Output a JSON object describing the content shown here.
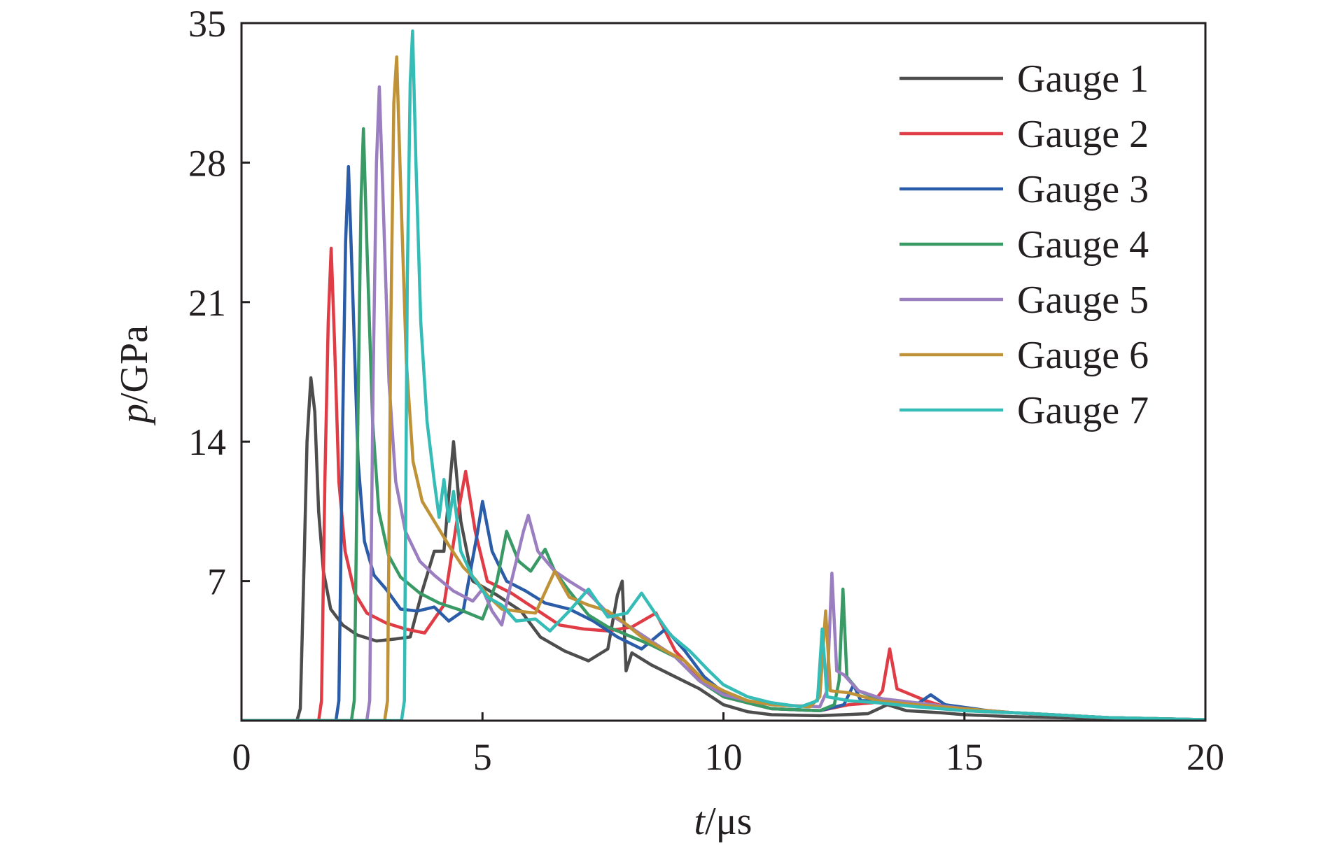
{
  "chart_data": {
    "type": "line",
    "xlabel": {
      "italic": "t",
      "unit": "/μs"
    },
    "ylabel": {
      "italic": "p",
      "unit": "/GPa"
    },
    "xlim": [
      0,
      20
    ],
    "ylim": [
      0,
      35
    ],
    "xticks": [
      0,
      5,
      10,
      15,
      20
    ],
    "yticks": [
      7,
      14,
      21,
      28,
      35
    ],
    "grid": false,
    "legend_position": "top-right",
    "series": [
      {
        "name": "Gauge 1",
        "color": "#4d4d4d",
        "points": [
          [
            0,
            0
          ],
          [
            1.15,
            0
          ],
          [
            1.22,
            0.6
          ],
          [
            1.3,
            8
          ],
          [
            1.36,
            14
          ],
          [
            1.44,
            17.2
          ],
          [
            1.52,
            15.5
          ],
          [
            1.6,
            10.5
          ],
          [
            1.7,
            7.5
          ],
          [
            1.85,
            5.6
          ],
          [
            2.1,
            4.8
          ],
          [
            2.4,
            4.3
          ],
          [
            2.8,
            4.0
          ],
          [
            3.2,
            4.1
          ],
          [
            3.5,
            4.2
          ],
          [
            3.75,
            6.5
          ],
          [
            4.0,
            8.5
          ],
          [
            4.2,
            8.5
          ],
          [
            4.4,
            14.0
          ],
          [
            4.55,
            10
          ],
          [
            4.8,
            7
          ],
          [
            5.3,
            6.3
          ],
          [
            5.8,
            5.5
          ],
          [
            6.2,
            4.2
          ],
          [
            6.7,
            3.5
          ],
          [
            7.2,
            3.0
          ],
          [
            7.6,
            3.6
          ],
          [
            7.8,
            6.3
          ],
          [
            7.9,
            7.0
          ],
          [
            7.98,
            2.5
          ],
          [
            8.1,
            3.4
          ],
          [
            8.5,
            2.8
          ],
          [
            9.0,
            2.2
          ],
          [
            9.5,
            1.6
          ],
          [
            10.0,
            0.8
          ],
          [
            10.5,
            0.45
          ],
          [
            11.0,
            0.3
          ],
          [
            12.0,
            0.25
          ],
          [
            12.5,
            0.3
          ],
          [
            13.0,
            0.35
          ],
          [
            13.4,
            0.8
          ],
          [
            13.8,
            0.5
          ],
          [
            14.5,
            0.4
          ],
          [
            15,
            0.3
          ],
          [
            16,
            0.2
          ],
          [
            18,
            0.1
          ],
          [
            20,
            0.05
          ]
        ]
      },
      {
        "name": "Gauge 2",
        "color": "#e03c45",
        "points": [
          [
            0,
            0
          ],
          [
            1.6,
            0
          ],
          [
            1.66,
            1
          ],
          [
            1.73,
            12
          ],
          [
            1.8,
            20
          ],
          [
            1.86,
            23.7
          ],
          [
            1.93,
            19
          ],
          [
            2.02,
            12
          ],
          [
            2.15,
            8.5
          ],
          [
            2.35,
            6.4
          ],
          [
            2.6,
            5.4
          ],
          [
            3.0,
            4.9
          ],
          [
            3.4,
            4.6
          ],
          [
            3.8,
            4.4
          ],
          [
            4.2,
            5.8
          ],
          [
            4.5,
            10.5
          ],
          [
            4.65,
            12.5
          ],
          [
            4.85,
            9.5
          ],
          [
            5.1,
            7.0
          ],
          [
            5.6,
            6.4
          ],
          [
            6.1,
            5.6
          ],
          [
            6.6,
            4.8
          ],
          [
            7.1,
            4.6
          ],
          [
            7.6,
            4.5
          ],
          [
            8.1,
            4.7
          ],
          [
            8.6,
            5.4
          ],
          [
            9.0,
            3.5
          ],
          [
            9.5,
            2.2
          ],
          [
            10.0,
            1.2
          ],
          [
            10.5,
            0.9
          ],
          [
            11.0,
            0.6
          ],
          [
            12.0,
            0.5
          ],
          [
            12.6,
            0.8
          ],
          [
            13.1,
            0.9
          ],
          [
            13.3,
            1.5
          ],
          [
            13.45,
            3.6
          ],
          [
            13.6,
            1.6
          ],
          [
            14.2,
            1.0
          ],
          [
            14.6,
            0.7
          ],
          [
            15.2,
            0.5
          ],
          [
            16,
            0.4
          ],
          [
            18,
            0.15
          ],
          [
            20,
            0.05
          ]
        ]
      },
      {
        "name": "Gauge 3",
        "color": "#2a5ca8",
        "points": [
          [
            0,
            0
          ],
          [
            1.96,
            0
          ],
          [
            2.02,
            1
          ],
          [
            2.1,
            15
          ],
          [
            2.16,
            24
          ],
          [
            2.22,
            27.8
          ],
          [
            2.3,
            22
          ],
          [
            2.42,
            13
          ],
          [
            2.55,
            9.0
          ],
          [
            2.75,
            7.3
          ],
          [
            3.0,
            6.6
          ],
          [
            3.3,
            5.6
          ],
          [
            3.65,
            5.5
          ],
          [
            4.0,
            5.7
          ],
          [
            4.3,
            5.0
          ],
          [
            4.6,
            5.5
          ],
          [
            4.9,
            9.5
          ],
          [
            5.0,
            11.0
          ],
          [
            5.2,
            8.5
          ],
          [
            5.5,
            7.0
          ],
          [
            5.9,
            6.5
          ],
          [
            6.3,
            5.9
          ],
          [
            6.8,
            5.6
          ],
          [
            7.3,
            5.0
          ],
          [
            7.8,
            4.2
          ],
          [
            8.3,
            3.6
          ],
          [
            8.8,
            4.6
          ],
          [
            9.2,
            3.5
          ],
          [
            9.6,
            2.2
          ],
          [
            10.0,
            1.4
          ],
          [
            10.5,
            0.9
          ],
          [
            11.0,
            0.6
          ],
          [
            12.0,
            0.5
          ],
          [
            12.5,
            0.8
          ],
          [
            12.7,
            1.8
          ],
          [
            12.85,
            1.0
          ],
          [
            13.5,
            1.0
          ],
          [
            14.0,
            0.8
          ],
          [
            14.3,
            1.3
          ],
          [
            14.6,
            0.8
          ],
          [
            15.5,
            0.5
          ],
          [
            16,
            0.4
          ],
          [
            18,
            0.15
          ],
          [
            20,
            0.05
          ]
        ]
      },
      {
        "name": "Gauge 4",
        "color": "#3a9a66",
        "points": [
          [
            0,
            0
          ],
          [
            2.28,
            0
          ],
          [
            2.34,
            1
          ],
          [
            2.42,
            16
          ],
          [
            2.48,
            26
          ],
          [
            2.53,
            29.7
          ],
          [
            2.6,
            24
          ],
          [
            2.72,
            15
          ],
          [
            2.85,
            10.5
          ],
          [
            3.05,
            8.3
          ],
          [
            3.3,
            7.2
          ],
          [
            3.7,
            6.4
          ],
          [
            4.1,
            5.9
          ],
          [
            4.6,
            5.5
          ],
          [
            5.0,
            5.1
          ],
          [
            5.3,
            7.0
          ],
          [
            5.5,
            9.5
          ],
          [
            5.75,
            8.0
          ],
          [
            6.0,
            7.5
          ],
          [
            6.3,
            8.6
          ],
          [
            6.5,
            7.5
          ],
          [
            6.8,
            6.5
          ],
          [
            7.2,
            5.3
          ],
          [
            7.6,
            4.7
          ],
          [
            8.0,
            4.3
          ],
          [
            8.5,
            3.8
          ],
          [
            9.0,
            3.2
          ],
          [
            9.5,
            2.0
          ],
          [
            10.0,
            1.2
          ],
          [
            10.5,
            0.9
          ],
          [
            11.0,
            0.6
          ],
          [
            12.0,
            0.5
          ],
          [
            12.3,
            0.8
          ],
          [
            12.4,
            2.0
          ],
          [
            12.48,
            6.6
          ],
          [
            12.56,
            2.2
          ],
          [
            12.8,
            1.5
          ],
          [
            13.3,
            1.0
          ],
          [
            14.0,
            0.8
          ],
          [
            15,
            0.5
          ],
          [
            16,
            0.4
          ],
          [
            18,
            0.15
          ],
          [
            20,
            0.05
          ]
        ]
      },
      {
        "name": "Gauge 5",
        "color": "#9a7ec0",
        "points": [
          [
            0,
            0
          ],
          [
            2.6,
            0
          ],
          [
            2.66,
            1
          ],
          [
            2.73,
            17
          ],
          [
            2.8,
            28
          ],
          [
            2.86,
            31.8
          ],
          [
            2.94,
            26
          ],
          [
            3.06,
            17
          ],
          [
            3.2,
            12
          ],
          [
            3.4,
            9.5
          ],
          [
            3.7,
            8.0
          ],
          [
            4.0,
            7.3
          ],
          [
            4.4,
            6.5
          ],
          [
            4.8,
            6.0
          ],
          [
            5.0,
            6.6
          ],
          [
            5.2,
            5.5
          ],
          [
            5.4,
            4.8
          ],
          [
            5.6,
            7.0
          ],
          [
            5.85,
            9.5
          ],
          [
            5.95,
            10.3
          ],
          [
            6.15,
            8.5
          ],
          [
            6.5,
            7.5
          ],
          [
            6.8,
            7.0
          ],
          [
            7.2,
            6.4
          ],
          [
            7.6,
            5.4
          ],
          [
            8.0,
            4.8
          ],
          [
            8.5,
            4.0
          ],
          [
            9.0,
            3.2
          ],
          [
            9.5,
            2.0
          ],
          [
            10.0,
            1.3
          ],
          [
            10.5,
            1.0
          ],
          [
            11.0,
            0.8
          ],
          [
            12.0,
            0.7
          ],
          [
            12.15,
            1.5
          ],
          [
            12.25,
            7.4
          ],
          [
            12.35,
            2.5
          ],
          [
            12.5,
            2.3
          ],
          [
            12.8,
            1.5
          ],
          [
            13.3,
            1.1
          ],
          [
            14.0,
            0.9
          ],
          [
            15,
            0.6
          ],
          [
            16,
            0.4
          ],
          [
            18,
            0.15
          ],
          [
            20,
            0.05
          ]
        ]
      },
      {
        "name": "Gauge 6",
        "color": "#bf9238",
        "points": [
          [
            0,
            0
          ],
          [
            2.97,
            0
          ],
          [
            3.03,
            1
          ],
          [
            3.1,
            20
          ],
          [
            3.16,
            31
          ],
          [
            3.22,
            33.3
          ],
          [
            3.3,
            27
          ],
          [
            3.42,
            18
          ],
          [
            3.56,
            13
          ],
          [
            3.75,
            11.0
          ],
          [
            4.0,
            10.0
          ],
          [
            4.3,
            8.8
          ],
          [
            4.6,
            7.7
          ],
          [
            4.85,
            7.1
          ],
          [
            5.1,
            6.3
          ],
          [
            5.4,
            5.6
          ],
          [
            5.7,
            5.5
          ],
          [
            6.1,
            5.4
          ],
          [
            6.5,
            7.5
          ],
          [
            6.8,
            6.2
          ],
          [
            7.2,
            5.8
          ],
          [
            7.6,
            5.5
          ],
          [
            7.9,
            5.0
          ],
          [
            8.3,
            4.2
          ],
          [
            8.8,
            3.5
          ],
          [
            9.2,
            3.0
          ],
          [
            9.6,
            2.0
          ],
          [
            10.0,
            1.5
          ],
          [
            10.5,
            1.0
          ],
          [
            11.0,
            0.8
          ],
          [
            11.8,
            0.7
          ],
          [
            12.0,
            1.2
          ],
          [
            12.12,
            5.5
          ],
          [
            12.22,
            1.5
          ],
          [
            12.6,
            1.4
          ],
          [
            13.2,
            1.0
          ],
          [
            14.0,
            0.8
          ],
          [
            15,
            0.6
          ],
          [
            16,
            0.4
          ],
          [
            18,
            0.15
          ],
          [
            20,
            0.05
          ]
        ]
      },
      {
        "name": "Gauge 7",
        "color": "#35bcb6",
        "points": [
          [
            0,
            0
          ],
          [
            3.32,
            0
          ],
          [
            3.38,
            1
          ],
          [
            3.44,
            22
          ],
          [
            3.5,
            32
          ],
          [
            3.55,
            34.6
          ],
          [
            3.62,
            28
          ],
          [
            3.72,
            20
          ],
          [
            3.85,
            15
          ],
          [
            4.0,
            12.0
          ],
          [
            4.1,
            10.2
          ],
          [
            4.2,
            12.1
          ],
          [
            4.3,
            10.0
          ],
          [
            4.4,
            11.5
          ],
          [
            4.55,
            8.5
          ],
          [
            4.8,
            7.2
          ],
          [
            5.1,
            6.2
          ],
          [
            5.4,
            5.8
          ],
          [
            5.7,
            5.0
          ],
          [
            6.1,
            5.1
          ],
          [
            6.4,
            4.5
          ],
          [
            6.8,
            5.5
          ],
          [
            7.2,
            6.6
          ],
          [
            7.6,
            5.2
          ],
          [
            8.0,
            5.4
          ],
          [
            8.3,
            6.4
          ],
          [
            8.55,
            5.5
          ],
          [
            8.9,
            4.3
          ],
          [
            9.3,
            3.5
          ],
          [
            9.7,
            2.5
          ],
          [
            10.0,
            1.8
          ],
          [
            10.5,
            1.2
          ],
          [
            11.0,
            0.9
          ],
          [
            11.6,
            0.7
          ],
          [
            11.95,
            1.0
          ],
          [
            12.05,
            4.6
          ],
          [
            12.15,
            1.2
          ],
          [
            12.6,
            1.0
          ],
          [
            13.2,
            0.9
          ],
          [
            14.0,
            0.7
          ],
          [
            15,
            0.5
          ],
          [
            16,
            0.4
          ],
          [
            18,
            0.15
          ],
          [
            20,
            0.05
          ]
        ]
      }
    ]
  }
}
